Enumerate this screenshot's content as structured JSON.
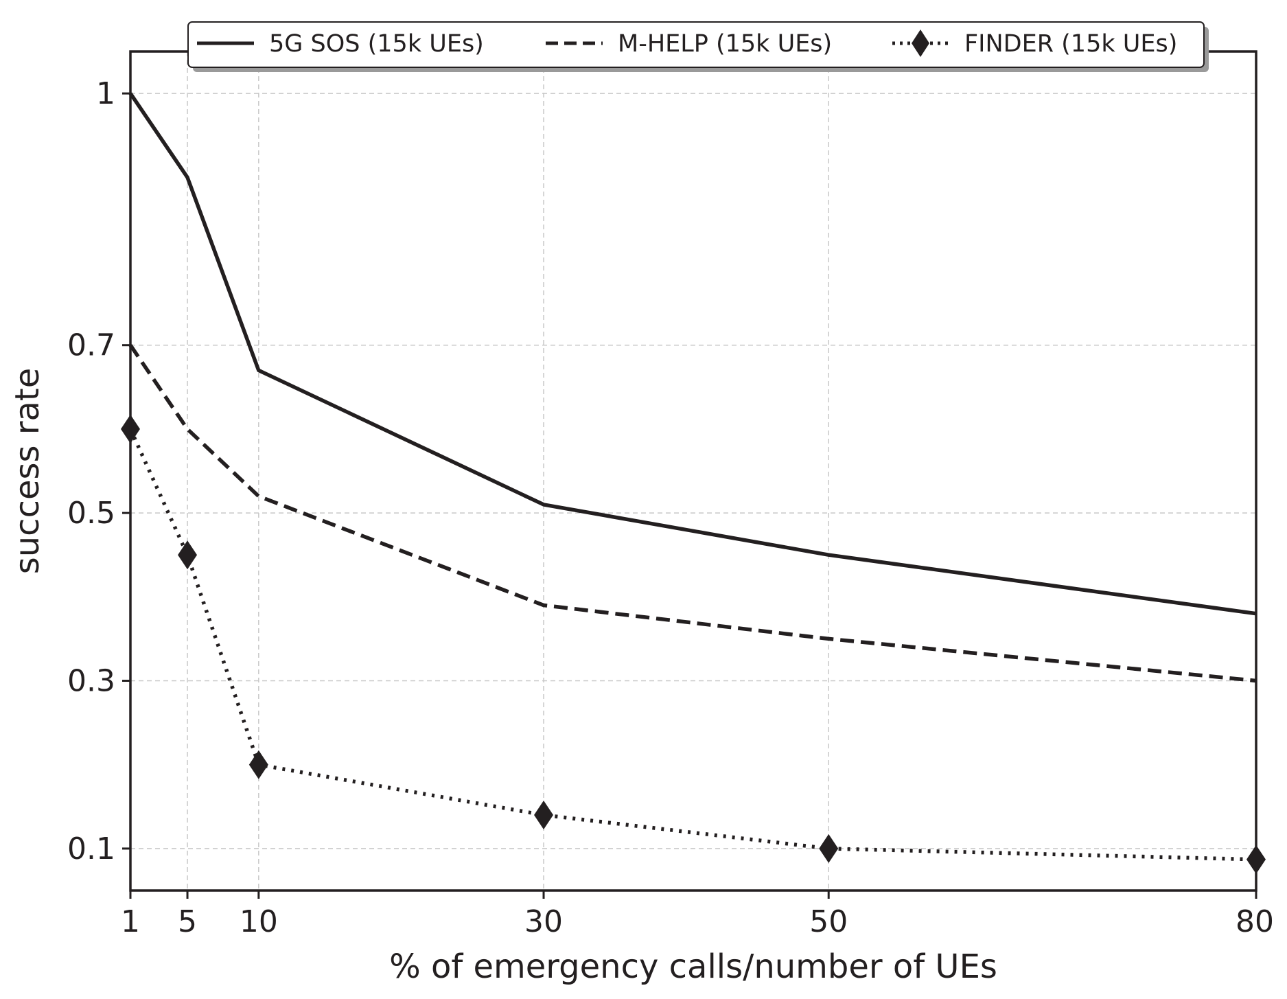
{
  "colors": {
    "ink": "#231f20",
    "grid": "#c8c8c8",
    "background": "#ffffff",
    "legend_shadow": "#9a9a9a"
  },
  "chart_data": {
    "type": "line",
    "title": "",
    "xlabel": "% of emergency calls/number of UEs",
    "ylabel": "success rate",
    "x": [
      1,
      5,
      10,
      30,
      50,
      80
    ],
    "x_tick_labels": [
      "1",
      "5",
      "10",
      "30",
      "50",
      "80"
    ],
    "y_ticks": [
      0.1,
      0.3,
      0.5,
      0.7,
      1
    ],
    "y_tick_labels": [
      "0.1",
      "0.3",
      "0.5",
      "0.7",
      "1"
    ],
    "xlim": [
      1,
      80
    ],
    "ylim": [
      0.05,
      1.05
    ],
    "grid": true,
    "legend_position": "top-center",
    "series": [
      {
        "name": "5G SOS (15k UEs)",
        "style": "solid",
        "marker": "none",
        "values": [
          1.0,
          0.9,
          0.67,
          0.51,
          0.45,
          0.38
        ]
      },
      {
        "name": "M-HELP (15k UEs)",
        "style": "dashed",
        "marker": "none",
        "values": [
          0.7,
          0.6,
          0.52,
          0.39,
          0.35,
          0.3
        ]
      },
      {
        "name": "FINDER (15k UEs)",
        "style": "dotted",
        "marker": "diamond",
        "values": [
          0.6,
          0.45,
          0.2,
          0.14,
          0.1,
          0.087
        ]
      }
    ]
  }
}
